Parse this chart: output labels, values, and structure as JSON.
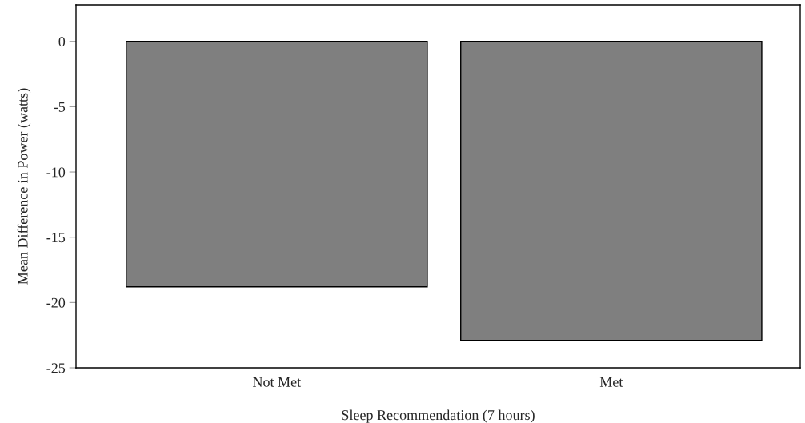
{
  "chart_data": {
    "type": "bar",
    "xlabel": "Sleep Recommendation (7 hours)",
    "ylabel": "Mean Difference in Power (watts)",
    "categories": [
      "Not Met",
      "Met"
    ],
    "values": [
      -18.8,
      -22.9
    ],
    "color": "#7f7f7f",
    "ylim": [
      -25,
      2.8
    ],
    "yticks": [
      0,
      -5,
      -10,
      -15,
      -20,
      -25
    ],
    "grid": false,
    "legend": false
  }
}
